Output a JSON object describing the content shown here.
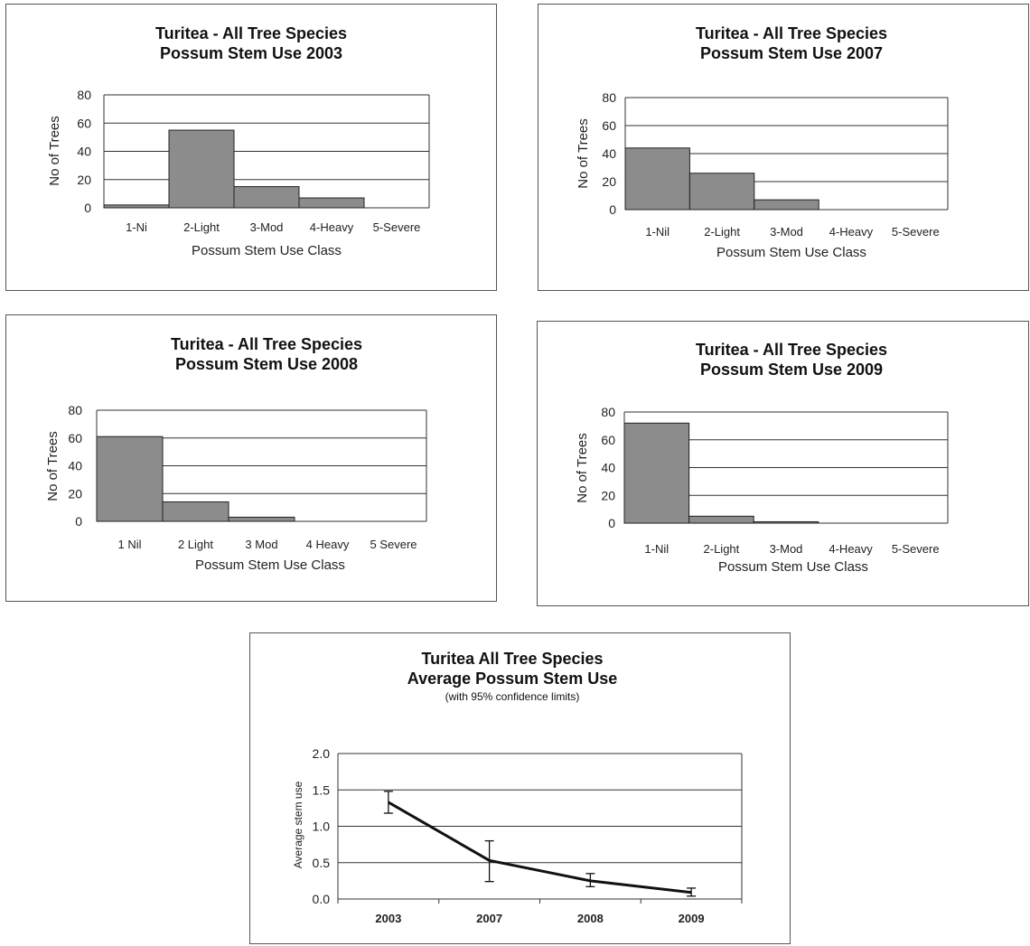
{
  "chart_data": [
    {
      "type": "bar",
      "title": [
        "Turitea - All Tree Species",
        "Possum Stem Use 2003"
      ],
      "xlabel": "Possum Stem Use Class",
      "ylabel": "No of Trees",
      "categories": [
        "1-Ni",
        "2-Light",
        "3-Mod",
        "4-Heavy",
        "5-Severe"
      ],
      "values": [
        2,
        55,
        15,
        7,
        0
      ],
      "ylim": [
        0,
        80
      ],
      "yticks": [
        "0",
        "20",
        "40",
        "60",
        "80"
      ],
      "grid": true,
      "bar_color": "#8c8c8c"
    },
    {
      "type": "bar",
      "title": [
        "Turitea - All Tree Species",
        "Possum Stem Use 2007"
      ],
      "xlabel": "Possum Stem Use Class",
      "ylabel": "No of Trees",
      "categories": [
        "1-Nil",
        "2-Light",
        "3-Mod",
        "4-Heavy",
        "5-Severe"
      ],
      "values": [
        44,
        26,
        7,
        0,
        0
      ],
      "ylim": [
        0,
        80
      ],
      "yticks": [
        "0",
        "20",
        "40",
        "60",
        "80"
      ],
      "grid": true,
      "bar_color": "#8c8c8c"
    },
    {
      "type": "bar",
      "title": [
        "Turitea - All Tree Species",
        "Possum Stem Use 2008"
      ],
      "xlabel": "Possum Stem Use Class",
      "ylabel": "No of Trees",
      "categories": [
        "1 Nil",
        "2 Light",
        "3 Mod",
        "4 Heavy",
        "5 Severe"
      ],
      "values": [
        61,
        14,
        3,
        0,
        0
      ],
      "ylim": [
        0,
        80
      ],
      "yticks": [
        "0",
        "20",
        "40",
        "60",
        "80"
      ],
      "grid": true,
      "bar_color": "#8c8c8c"
    },
    {
      "type": "bar",
      "title": [
        "Turitea - All Tree Species",
        "Possum Stem Use 2009"
      ],
      "xlabel": "Possum Stem Use Class",
      "ylabel": "No of Trees",
      "categories": [
        "1-Nil",
        "2-Light",
        "3-Mod",
        "4-Heavy",
        "5-Severe"
      ],
      "values": [
        72,
        5,
        1,
        0,
        0
      ],
      "ylim": [
        0,
        80
      ],
      "yticks": [
        "0",
        "20",
        "40",
        "60",
        "80"
      ],
      "grid": true,
      "bar_color": "#8c8c8c"
    },
    {
      "type": "line",
      "title": [
        "Turitea All Tree Species",
        "Average Possum Stem Use"
      ],
      "subtitle": "(with 95% confidence limits)",
      "xlabel": "",
      "ylabel": "Average stem use",
      "categories": [
        "2003",
        "2007",
        "2008",
        "2009"
      ],
      "values": [
        1.33,
        0.53,
        0.25,
        0.09
      ],
      "error_low": [
        1.18,
        0.24,
        0.17,
        0.04
      ],
      "error_high": [
        1.48,
        0.8,
        0.35,
        0.15
      ],
      "ylim": [
        0,
        2
      ],
      "yticks": [
        "0.0",
        "0.5",
        "1.0",
        "1.5",
        "2.0"
      ],
      "grid": true,
      "line_color": "#111111"
    }
  ]
}
